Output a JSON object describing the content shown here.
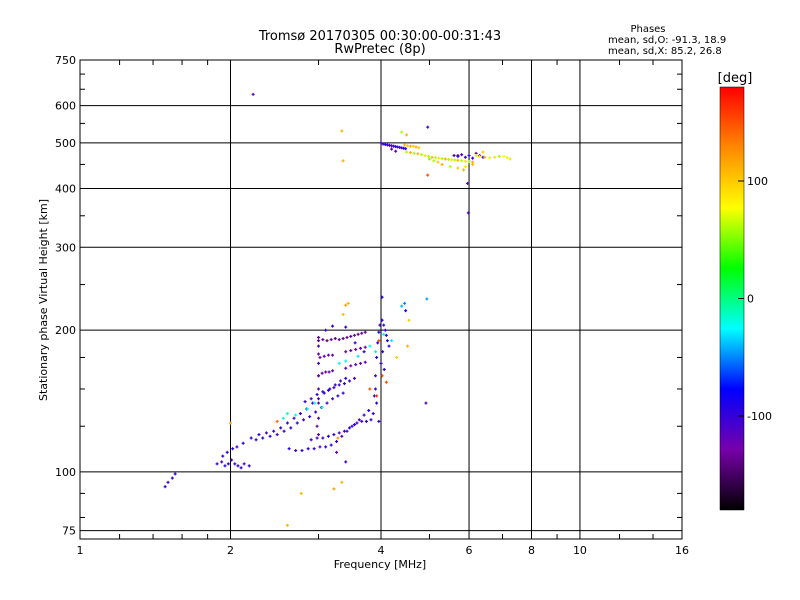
{
  "chart_data": {
    "type": "scatter",
    "title": "Tromsø 20170305 00:30:00-00:31:43",
    "subtitle": "RwPretec (8p)",
    "xlabel": "Frequency [MHz]",
    "ylabel": "Stationary phase Virtual Height [km]",
    "x_scale": "log",
    "y_scale": "log",
    "xlim": [
      1,
      16
    ],
    "ylim": [
      72,
      750
    ],
    "x_ticks": [
      {
        "value": 1,
        "label": "1"
      },
      {
        "value": 2,
        "label": "2"
      },
      {
        "value": 4,
        "label": "4"
      },
      {
        "value": 6,
        "label": "6"
      },
      {
        "value": 8,
        "label": "8"
      },
      {
        "value": 10,
        "label": "10"
      },
      {
        "value": 16,
        "label": "16"
      }
    ],
    "y_ticks": [
      {
        "value": 75,
        "label": "75"
      },
      {
        "value": 100,
        "label": "100"
      },
      {
        "value": 200,
        "label": "200"
      },
      {
        "value": 300,
        "label": "300"
      },
      {
        "value": 400,
        "label": "400"
      },
      {
        "value": 500,
        "label": "500"
      },
      {
        "value": 600,
        "label": "600"
      },
      {
        "value": 750,
        "label": "750"
      }
    ],
    "grid": true,
    "phases_header": "Phases",
    "stats": [
      "mean, sd,O: -91.3, 18.9",
      "mean, sd,X:  85.2, 26.8"
    ],
    "colorbar": {
      "label": "[deg]",
      "range": [
        -180,
        180
      ],
      "ticks": [
        {
          "value": 100,
          "label": "100"
        },
        {
          "value": 0,
          "label": "0"
        },
        {
          "value": -100,
          "label": "-100"
        }
      ],
      "gradient": [
        "#000000",
        "#7700aa",
        "#0000ff",
        "#00ffff",
        "#00ff00",
        "#ffff00",
        "#ff8800",
        "#ff0000"
      ]
    },
    "points": [
      [
        1.48,
        93,
        -100
      ],
      [
        1.5,
        95,
        -110
      ],
      [
        1.53,
        97,
        -100
      ],
      [
        1.55,
        99,
        -95
      ],
      [
        1.88,
        104,
        -100
      ],
      [
        1.92,
        105,
        -110
      ],
      [
        1.95,
        103,
        -95
      ],
      [
        1.98,
        104,
        -100
      ],
      [
        2.01,
        106,
        -110
      ],
      [
        2.04,
        104,
        -100
      ],
      [
        2.07,
        103,
        -95
      ],
      [
        2.1,
        102,
        -100
      ],
      [
        2.13,
        104,
        -110
      ],
      [
        2.18,
        103,
        -100
      ],
      [
        1.93,
        108,
        -100
      ],
      [
        1.97,
        110,
        -95
      ],
      [
        2.02,
        112,
        -100
      ],
      [
        2.06,
        113,
        -110
      ],
      [
        2.12,
        115,
        -100
      ],
      [
        2.2,
        118,
        -95
      ],
      [
        2.28,
        120,
        -100
      ],
      [
        2.36,
        121,
        -110
      ],
      [
        2.44,
        122,
        -100
      ],
      [
        2.52,
        124,
        -95
      ],
      [
        2.6,
        127,
        -100
      ],
      [
        2.68,
        130,
        -110
      ],
      [
        2.76,
        133,
        -100
      ],
      [
        2.84,
        136,
        -95
      ],
      [
        2.92,
        140,
        -100
      ],
      [
        3.0,
        143,
        -110
      ],
      [
        3.08,
        147,
        -100
      ],
      [
        3.16,
        150,
        -95
      ],
      [
        3.24,
        153,
        -100
      ],
      [
        3.32,
        156,
        -110
      ],
      [
        3.4,
        158,
        -100
      ],
      [
        2.25,
        117,
        -100
      ],
      [
        2.32,
        118,
        -95
      ],
      [
        2.4,
        119,
        -100
      ],
      [
        2.48,
        120,
        -110
      ],
      [
        2.56,
        122,
        -100
      ],
      [
        2.64,
        124,
        -95
      ],
      [
        2.72,
        127,
        -100
      ],
      [
        2.8,
        129,
        -110
      ],
      [
        2.88,
        131,
        -100
      ],
      [
        2.96,
        134,
        -95
      ],
      [
        3.04,
        137,
        -100
      ],
      [
        3.12,
        140,
        -110
      ],
      [
        3.2,
        143,
        -100
      ],
      [
        3.28,
        145,
        -95
      ],
      [
        3.36,
        147,
        -100
      ],
      [
        2.62,
        112,
        -100
      ],
      [
        2.7,
        111,
        -110
      ],
      [
        2.78,
        111,
        -100
      ],
      [
        2.86,
        112,
        -95
      ],
      [
        2.94,
        112,
        -100
      ],
      [
        3.02,
        113,
        -110
      ],
      [
        3.1,
        113,
        -100
      ],
      [
        3.18,
        114,
        -95
      ],
      [
        3.26,
        116,
        -100
      ],
      [
        3.34,
        119,
        -110
      ],
      [
        3.42,
        122,
        -100
      ],
      [
        3.5,
        125,
        -95
      ],
      [
        3.58,
        127,
        -100
      ],
      [
        3.66,
        128,
        -110
      ],
      [
        3.74,
        128,
        -100
      ],
      [
        3.82,
        129,
        -95
      ],
      [
        2.9,
        117,
        -100
      ],
      [
        2.98,
        118,
        -110
      ],
      [
        3.06,
        118,
        -100
      ],
      [
        3.14,
        119,
        -95
      ],
      [
        3.22,
        120,
        -100
      ],
      [
        3.3,
        121,
        -110
      ],
      [
        3.38,
        122,
        -100
      ],
      [
        3.46,
        124,
        -95
      ],
      [
        3.54,
        126,
        -100
      ],
      [
        3.62,
        129,
        -110
      ],
      [
        3.7,
        132,
        -100
      ],
      [
        3.78,
        135,
        -95
      ],
      [
        2.82,
        141,
        -100
      ],
      [
        2.9,
        143,
        -110
      ],
      [
        2.98,
        146,
        -100
      ],
      [
        3.06,
        148,
        -95
      ],
      [
        3.14,
        149,
        -100
      ],
      [
        3.22,
        151,
        -110
      ],
      [
        3.3,
        153,
        -100
      ],
      [
        3.38,
        154,
        -95
      ],
      [
        3.46,
        156,
        -100
      ],
      [
        3.54,
        158,
        -110
      ],
      [
        3.0,
        160,
        -130
      ],
      [
        3.05,
        162,
        -120
      ],
      [
        3.1,
        163,
        -130
      ],
      [
        3.15,
        163,
        -120
      ],
      [
        3.2,
        164,
        -130
      ],
      [
        3.4,
        166,
        -120
      ],
      [
        3.48,
        168,
        -130
      ],
      [
        3.56,
        169,
        -120
      ],
      [
        3.64,
        170,
        -130
      ],
      [
        3.72,
        171,
        -120
      ],
      [
        3.02,
        175,
        -130
      ],
      [
        3.08,
        176,
        -120
      ],
      [
        3.14,
        177,
        -130
      ],
      [
        3.2,
        177,
        -120
      ],
      [
        3.4,
        180,
        -130
      ],
      [
        3.48,
        181,
        -120
      ],
      [
        3.56,
        182,
        -130
      ],
      [
        3.64,
        183,
        -120
      ],
      [
        3.72,
        184,
        -130
      ],
      [
        3.0,
        190,
        -140
      ],
      [
        3.06,
        191,
        -130
      ],
      [
        3.12,
        190,
        -140
      ],
      [
        3.18,
        191,
        -130
      ],
      [
        3.24,
        192,
        -140
      ],
      [
        3.3,
        191,
        -130
      ],
      [
        3.36,
        192,
        -140
      ],
      [
        3.42,
        193,
        -130
      ],
      [
        3.48,
        194,
        -140
      ],
      [
        3.54,
        195,
        -130
      ],
      [
        3.6,
        196,
        -140
      ],
      [
        3.66,
        197,
        -130
      ],
      [
        3.72,
        198,
        -140
      ],
      [
        3.0,
        193,
        -120
      ],
      [
        3.0,
        185,
        -110
      ],
      [
        3.0,
        178,
        -120
      ],
      [
        3.0,
        170,
        -110
      ],
      [
        3.0,
        160,
        -120
      ],
      [
        3.0,
        150,
        -110
      ],
      [
        3.0,
        140,
        -120
      ],
      [
        3.0,
        130,
        -110
      ],
      [
        3.0,
        120,
        -120
      ],
      [
        3.1,
        200,
        -100
      ],
      [
        3.2,
        204,
        -95
      ],
      [
        3.4,
        203,
        -100
      ],
      [
        3.55,
        188,
        -100
      ],
      [
        3.7,
        180,
        -95
      ],
      [
        3.86,
        133,
        -100
      ],
      [
        3.88,
        145,
        -95
      ],
      [
        3.9,
        160,
        -100
      ],
      [
        3.92,
        175,
        -95
      ],
      [
        3.94,
        188,
        -100
      ],
      [
        3.96,
        198,
        -95
      ],
      [
        3.98,
        205,
        -100
      ],
      [
        4.02,
        210,
        -95
      ],
      [
        4.05,
        205,
        -100
      ],
      [
        4.08,
        200,
        -95
      ],
      [
        4.1,
        195,
        -100
      ],
      [
        4.12,
        190,
        -95
      ],
      [
        4.15,
        185,
        -100
      ],
      [
        4.03,
        180,
        -95
      ],
      [
        4.0,
        170,
        -100
      ],
      [
        4.06,
        165,
        -95
      ],
      [
        3.9,
        150,
        -100
      ],
      [
        3.92,
        140,
        -95
      ],
      [
        3.96,
        128,
        -100
      ],
      [
        2.55,
        130,
        -20
      ],
      [
        2.6,
        133,
        -15
      ],
      [
        2.7,
        132,
        -25
      ],
      [
        2.85,
        136,
        -20
      ],
      [
        2.95,
        140,
        -20
      ],
      [
        3.05,
        137,
        -15
      ],
      [
        3.3,
        170,
        -25
      ],
      [
        3.4,
        172,
        -20
      ],
      [
        3.6,
        176,
        -30
      ],
      [
        3.8,
        185,
        -20
      ],
      [
        3.9,
        180,
        -10
      ],
      [
        4.05,
        196,
        -20
      ],
      [
        4.2,
        190,
        -30
      ],
      [
        4.02,
        235,
        -90
      ],
      [
        4.4,
        225,
        -40
      ],
      [
        4.46,
        228,
        -50
      ],
      [
        4.48,
        220,
        -90
      ],
      [
        4.94,
        233,
        -45
      ],
      [
        4.92,
        140,
        -110
      ],
      [
        3.4,
        226,
        120
      ],
      [
        3.44,
        228,
        110
      ],
      [
        3.36,
        216,
        110
      ],
      [
        2.0,
        127,
        120
      ],
      [
        2.77,
        90,
        110
      ],
      [
        3.22,
        92,
        120
      ],
      [
        3.34,
        95,
        110
      ],
      [
        3.28,
        118,
        120
      ],
      [
        2.6,
        77,
        110
      ],
      [
        4.52,
        185,
        110
      ],
      [
        4.3,
        175,
        100
      ],
      [
        4.55,
        210,
        100
      ],
      [
        4.02,
        160,
        160
      ],
      [
        4.1,
        155,
        150
      ],
      [
        3.92,
        145,
        160
      ],
      [
        3.8,
        150,
        150
      ],
      [
        2.48,
        128,
        140
      ],
      [
        3.96,
        190,
        150
      ],
      [
        2.22,
        634,
        -120
      ],
      [
        3.26,
        110,
        -120
      ],
      [
        3.4,
        105,
        -110
      ],
      [
        2.98,
        125,
        -130
      ],
      [
        3.34,
        530,
        110
      ],
      [
        3.36,
        458,
        110
      ],
      [
        4.0,
        500,
        -100
      ],
      [
        4.04,
        497,
        -110
      ],
      [
        4.08,
        496,
        -100
      ],
      [
        4.12,
        495,
        -95
      ],
      [
        4.16,
        494,
        -100
      ],
      [
        4.2,
        493,
        -110
      ],
      [
        4.24,
        492,
        -100
      ],
      [
        4.28,
        491,
        -95
      ],
      [
        4.32,
        490,
        -100
      ],
      [
        4.36,
        489,
        -110
      ],
      [
        4.4,
        488,
        -100
      ],
      [
        4.44,
        487,
        -95
      ],
      [
        4.48,
        486,
        -100
      ],
      [
        4.46,
        495,
        110
      ],
      [
        4.52,
        493,
        100
      ],
      [
        4.58,
        492,
        110
      ],
      [
        4.64,
        492,
        100
      ],
      [
        4.7,
        490,
        110
      ],
      [
        4.76,
        488,
        100
      ],
      [
        4.4,
        527,
        60
      ],
      [
        4.5,
        520,
        110
      ],
      [
        4.96,
        540,
        -110
      ],
      [
        4.2,
        485,
        -120
      ],
      [
        4.28,
        480,
        -120
      ],
      [
        4.5,
        478,
        60
      ],
      [
        4.58,
        477,
        110
      ],
      [
        4.66,
        475,
        60
      ],
      [
        4.74,
        474,
        110
      ],
      [
        4.82,
        472,
        60
      ],
      [
        4.9,
        470,
        90
      ],
      [
        4.98,
        468,
        60
      ],
      [
        5.06,
        466,
        110
      ],
      [
        5.14,
        465,
        60
      ],
      [
        5.22,
        464,
        90
      ],
      [
        5.3,
        463,
        60
      ],
      [
        5.38,
        462,
        110
      ],
      [
        5.46,
        461,
        60
      ],
      [
        5.54,
        460,
        90
      ],
      [
        5.62,
        460,
        60
      ],
      [
        5.7,
        459,
        110
      ],
      [
        5.8,
        458,
        60
      ],
      [
        5.9,
        457,
        90
      ],
      [
        6.0,
        456,
        60
      ],
      [
        6.1,
        455,
        110
      ],
      [
        5.6,
        470,
        -100
      ],
      [
        5.7,
        468,
        -95
      ],
      [
        5.8,
        472,
        -110
      ],
      [
        5.9,
        466,
        -100
      ],
      [
        6.0,
        470,
        -95
      ],
      [
        6.1,
        464,
        -100
      ],
      [
        6.2,
        475,
        -120
      ],
      [
        6.3,
        470,
        -110
      ],
      [
        6.4,
        466,
        -100
      ],
      [
        6.2,
        470,
        70
      ],
      [
        6.3,
        468,
        90
      ],
      [
        6.45,
        466,
        110
      ],
      [
        6.6,
        465,
        70
      ],
      [
        6.75,
        466,
        90
      ],
      [
        6.9,
        468,
        60
      ],
      [
        7.05,
        468,
        80
      ],
      [
        7.15,
        465,
        70
      ],
      [
        7.25,
        462,
        90
      ],
      [
        5.0,
        462,
        50
      ],
      [
        5.1,
        458,
        60
      ],
      [
        5.2,
        455,
        100
      ],
      [
        5.3,
        450,
        110
      ],
      [
        5.5,
        445,
        60
      ],
      [
        5.7,
        442,
        100
      ],
      [
        5.85,
        438,
        110
      ],
      [
        5.9,
        445,
        90
      ],
      [
        6.1,
        450,
        110
      ],
      [
        6.4,
        478,
        100
      ],
      [
        4.96,
        427,
        150
      ],
      [
        5.7,
        470,
        -110
      ],
      [
        5.96,
        410,
        -120
      ],
      [
        5.98,
        355,
        -110
      ]
    ]
  }
}
